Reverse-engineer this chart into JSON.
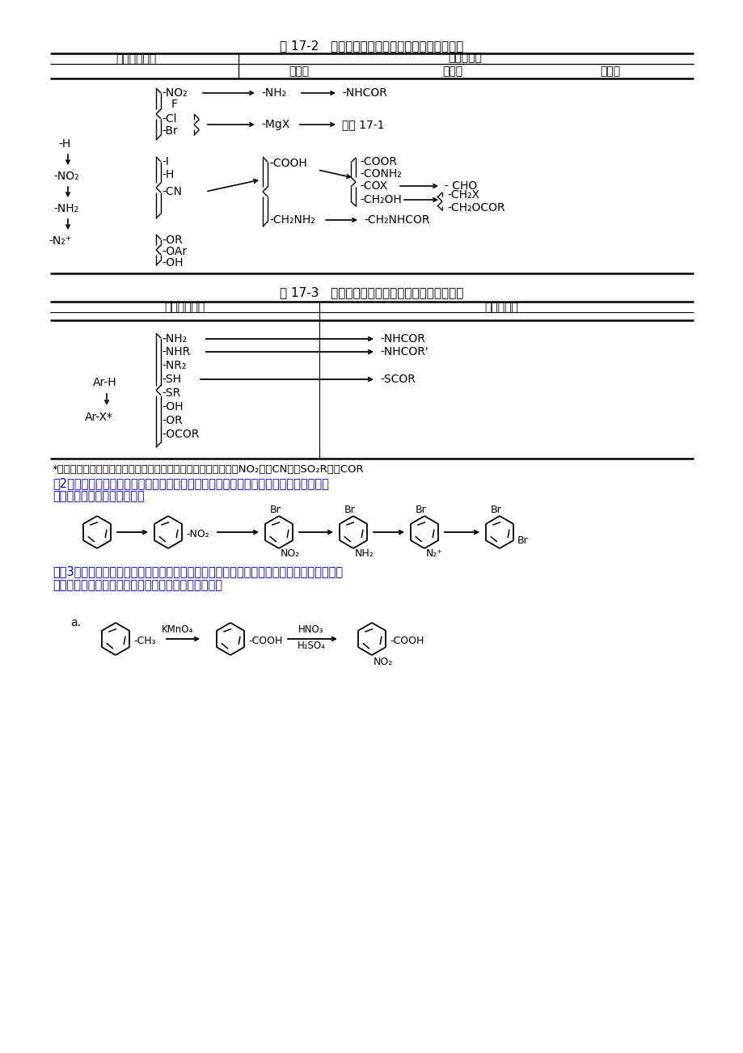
{
  "bg_color": "#ffffff",
  "title1": "表 17-2   通过芳香重氮盐的亲核取代反应引入基团",
  "title2": "表 17-3   通过活化的芳香卤烃的亲核取代引入基团",
  "col1": "直接引入基团",
  "col2": "衍生的基团",
  "gen1": "第一代",
  "gen2": "第二代",
  "gen3": "第三代",
  "note": "*注：在卤素的邻位或对位至少有一个，最好是两个下列基团：－NO₂、－CN、－SO₂R、－COR",
  "para2a": "（2）引入一种基团，这种基团具有一定的定位作用，待第二基团引入后，再除去这种基",
  "para2b": "团，例如由苯合成间二渴苯。",
  "para3a": "　　3、当用取代苯作为起始物时，可通过改变起始物取代基转化的先后顺序来决定最终产物",
  "para3b": "分子中基团的相对位置，例如由甲苯合成硝基苯甲酸。",
  "text_color_blue": "#0000CC"
}
